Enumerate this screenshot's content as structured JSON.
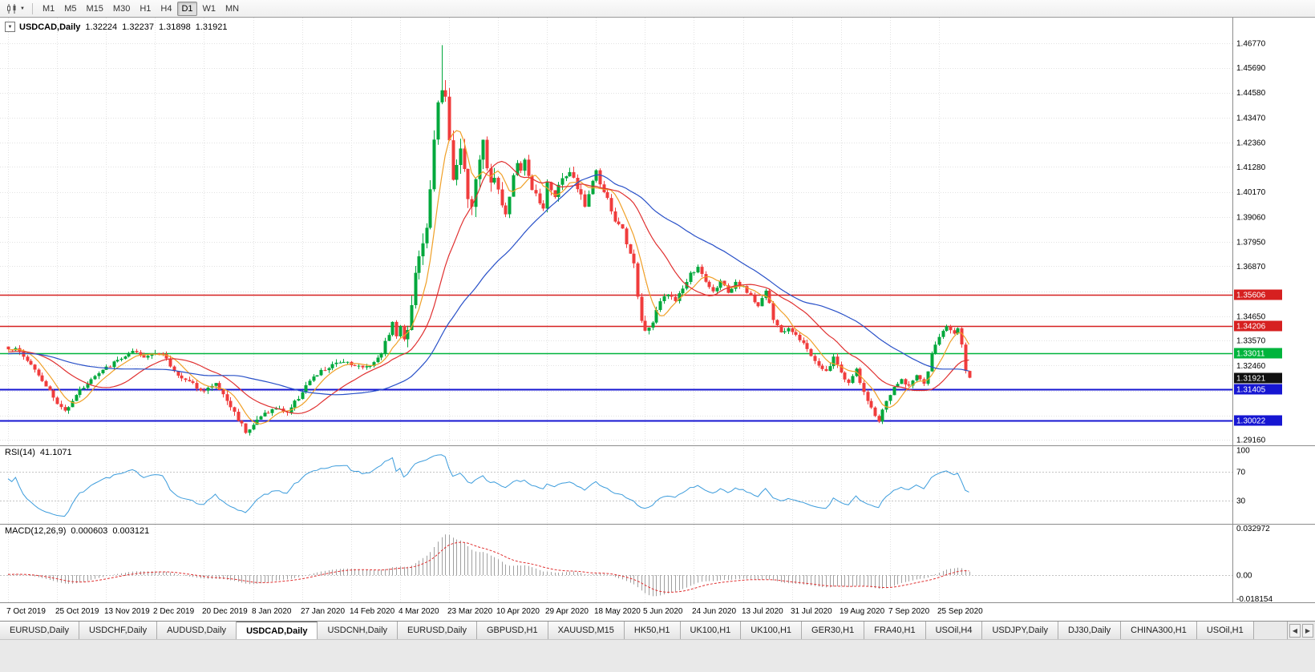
{
  "toolbar": {
    "timeframes": [
      "M1",
      "M5",
      "M15",
      "M30",
      "H1",
      "H4",
      "D1",
      "W1",
      "MN"
    ],
    "active_timeframe": "D1",
    "caret_glyph": "▼"
  },
  "chart": {
    "symbol_label": "USDCAD,Daily",
    "dropdown_glyph": "▼",
    "open": "1.32224",
    "high": "1.32237",
    "low": "1.31898",
    "close": "1.31921"
  },
  "price_axis": {
    "labels": [
      "1.46770",
      "1.45690",
      "1.44580",
      "1.43470",
      "1.42360",
      "1.41280",
      "1.40170",
      "1.39060",
      "1.37950",
      "1.36870",
      "1.34650",
      "1.33570",
      "1.32460",
      "1.29160"
    ],
    "grid_only": [
      "1.35760",
      "1.31350",
      "1.30240"
    ]
  },
  "hlines": [
    {
      "price": 1.35606,
      "label": "1.35606",
      "color": "#d62020",
      "width": 1.4,
      "type": "resistance"
    },
    {
      "price": 1.34206,
      "label": "1.34206",
      "color": "#d62020",
      "width": 1.4,
      "type": "resistance"
    },
    {
      "price": 1.33011,
      "label": "1.33011",
      "color": "#00b43c",
      "width": 1.4,
      "type": "pivot"
    },
    {
      "price": 1.31405,
      "label": "1.31405",
      "color": "#1616d2",
      "width": 2,
      "type": "support"
    },
    {
      "price": 1.30022,
      "label": "1.30022",
      "color": "#1616d2",
      "width": 2,
      "type": "support"
    }
  ],
  "current_price": {
    "value": 1.31921,
    "label": "1.31921"
  },
  "rsi_pane": {
    "title": "RSI(14)",
    "value": "41.1071",
    "levels": [
      "100",
      "70",
      "30"
    ],
    "upper_level": 70,
    "lower_level": 30
  },
  "macd_pane": {
    "title": "MACD(12,26,9)",
    "value_macd": "0.000603",
    "value_signal": "0.003121",
    "scale_max": "0.032972",
    "scale_zero": "0.00",
    "scale_min": "-0.018154"
  },
  "date_axis": [
    "7 Oct 2019",
    "25 Oct 2019",
    "13 Nov 2019",
    "2 Dec 2019",
    "20 Dec 2019",
    "8 Jan 2020",
    "27 Jan 2020",
    "14 Feb 2020",
    "4 Mar 2020",
    "23 Mar 2020",
    "10 Apr 2020",
    "29 Apr 2020",
    "18 May 2020",
    "5 Jun 2020",
    "24 Jun 2020",
    "13 Jul 2020",
    "31 Jul 2020",
    "19 Aug 2020",
    "7 Sep 2020",
    "25 Sep 2020"
  ],
  "tabs": {
    "items": [
      "EURUSD,Daily",
      "USDCHF,Daily",
      "AUDUSD,Daily",
      "USDCAD,Daily",
      "USDCNH,Daily",
      "EURUSD,Daily",
      "GBPUSD,H1",
      "XAUUSD,M15",
      "HK50,H1",
      "UK100,H1",
      "UK100,H1",
      "GER30,H1",
      "FRA40,H1",
      "USOil,H4",
      "USDJPY,Daily",
      "DJ30,Daily",
      "CHINA300,H1",
      "USOil,H1"
    ],
    "active_index": 3,
    "scroll_left_glyph": "◀",
    "scroll_right_glyph": "▶"
  },
  "colors": {
    "candle_up": "#00a83c",
    "candle_down": "#f03c3c",
    "rsi_line": "#3c9cdc",
    "macd_hist": "#a0a0a0",
    "macd_signal": "#e03030",
    "grid": "#e2e2e2",
    "current_badge": "#101010"
  },
  "chart_data": {
    "type": "candlestick",
    "symbol": "USDCAD",
    "timeframe": "Daily",
    "title": "USDCAD,Daily",
    "candle_count": 256,
    "last_candle_ohlc": {
      "open": 1.32224,
      "high": 1.32237,
      "low": 1.31898,
      "close": 1.31921
    },
    "forced_last_candle": {
      "open": 1.32224,
      "high": 1.32237,
      "low": 1.31898,
      "close": 1.31921
    },
    "forced_peak": {
      "index": 115,
      "high": 1.4669
    },
    "price_range_visible": [
      1.2906,
      1.477
    ],
    "close_path_anchors": [
      [
        0,
        1.3315
      ],
      [
        2,
        1.333
      ],
      [
        6,
        1.3255
      ],
      [
        10,
        1.316
      ],
      [
        13,
        1.3075
      ],
      [
        15,
        1.3045
      ],
      [
        18,
        1.312
      ],
      [
        22,
        1.3185
      ],
      [
        26,
        1.3235
      ],
      [
        30,
        1.328
      ],
      [
        33,
        1.3305
      ],
      [
        36,
        1.328
      ],
      [
        39,
        1.331
      ],
      [
        41,
        1.3295
      ],
      [
        44,
        1.322
      ],
      [
        48,
        1.317
      ],
      [
        52,
        1.3135
      ],
      [
        55,
        1.3165
      ],
      [
        58,
        1.309
      ],
      [
        61,
        1.301
      ],
      [
        63,
        1.2958
      ],
      [
        65,
        1.2985
      ],
      [
        68,
        1.3035
      ],
      [
        71,
        1.3055
      ],
      [
        74,
        1.304
      ],
      [
        77,
        1.3105
      ],
      [
        79,
        1.316
      ],
      [
        81,
        1.319
      ],
      [
        83,
        1.322
      ],
      [
        86,
        1.3245
      ],
      [
        89,
        1.327
      ],
      [
        91,
        1.3255
      ],
      [
        94,
        1.3235
      ],
      [
        97,
        1.326
      ],
      [
        99,
        1.331
      ],
      [
        101,
        1.339
      ],
      [
        102,
        1.3435
      ],
      [
        103,
        1.338
      ],
      [
        104,
        1.3415
      ],
      [
        105,
        1.337
      ],
      [
        106,
        1.342
      ],
      [
        107,
        1.353
      ],
      [
        108,
        1.365
      ],
      [
        109,
        1.374
      ],
      [
        110,
        1.377
      ],
      [
        111,
        1.387
      ],
      [
        112,
        1.401
      ],
      [
        113,
        1.423
      ],
      [
        114,
        1.443
      ],
      [
        115,
        1.449
      ],
      [
        116,
        1.4425
      ],
      [
        117,
        1.423
      ],
      [
        118,
        1.406
      ],
      [
        119,
        1.413
      ],
      [
        120,
        1.421
      ],
      [
        121,
        1.411
      ],
      [
        122,
        1.401
      ],
      [
        123,
        1.393
      ],
      [
        124,
        1.405
      ],
      [
        125,
        1.418
      ],
      [
        126,
        1.426
      ],
      [
        127,
        1.415
      ],
      [
        128,
        1.406
      ],
      [
        129,
        1.4105
      ],
      [
        130,
        1.402
      ],
      [
        131,
        1.396
      ],
      [
        132,
        1.389
      ],
      [
        133,
        1.4
      ],
      [
        134,
        1.409
      ],
      [
        135,
        1.416
      ],
      [
        136,
        1.41
      ],
      [
        137,
        1.417
      ],
      [
        138,
        1.409
      ],
      [
        139,
        1.403
      ],
      [
        141,
        1.398
      ],
      [
        142,
        1.395
      ],
      [
        143,
        1.407
      ],
      [
        145,
        1.399
      ],
      [
        147,
        1.408
      ],
      [
        149,
        1.411
      ],
      [
        151,
        1.403
      ],
      [
        153,
        1.396
      ],
      [
        155,
        1.406
      ],
      [
        156,
        1.412
      ],
      [
        157,
        1.405
      ],
      [
        159,
        1.398
      ],
      [
        161,
        1.389
      ],
      [
        163,
        1.384
      ],
      [
        164,
        1.378
      ],
      [
        166,
        1.369
      ],
      [
        167,
        1.356
      ],
      [
        168,
        1.345
      ],
      [
        169,
        1.339
      ],
      [
        171,
        1.344
      ],
      [
        173,
        1.353
      ],
      [
        175,
        1.357
      ],
      [
        177,
        1.353
      ],
      [
        179,
        1.359
      ],
      [
        181,
        1.365
      ],
      [
        183,
        1.368
      ],
      [
        185,
        1.362
      ],
      [
        187,
        1.357
      ],
      [
        189,
        1.363
      ],
      [
        191,
        1.356
      ],
      [
        193,
        1.361
      ],
      [
        195,
        1.359
      ],
      [
        197,
        1.356
      ],
      [
        199,
        1.351
      ],
      [
        201,
        1.358
      ],
      [
        203,
        1.345
      ],
      [
        205,
        1.339
      ],
      [
        207,
        1.3415
      ],
      [
        209,
        1.339
      ],
      [
        211,
        1.3345
      ],
      [
        213,
        1.329
      ],
      [
        215,
        1.325
      ],
      [
        217,
        1.322
      ],
      [
        219,
        1.328
      ],
      [
        221,
        1.3215
      ],
      [
        223,
        1.317
      ],
      [
        225,
        1.3225
      ],
      [
        227,
        1.312
      ],
      [
        229,
        1.306
      ],
      [
        231,
        1.2998
      ],
      [
        233,
        1.309
      ],
      [
        235,
        1.315
      ],
      [
        237,
        1.318
      ],
      [
        239,
        1.3155
      ],
      [
        241,
        1.321
      ],
      [
        243,
        1.316
      ],
      [
        245,
        1.329
      ],
      [
        247,
        1.338
      ],
      [
        249,
        1.3415
      ],
      [
        251,
        1.3395
      ],
      [
        252,
        1.342
      ],
      [
        253,
        1.334
      ],
      [
        254,
        1.3222
      ],
      [
        255,
        1.31921
      ]
    ],
    "moving_averages": [
      {
        "period": 7,
        "color": "#f0a028"
      },
      {
        "period": 20,
        "color": "#e03030"
      },
      {
        "period": 45,
        "color": "#2850c8"
      }
    ],
    "indicators": [
      {
        "name": "RSI",
        "period": 14,
        "last_value": 41.1071
      },
      {
        "name": "MACD",
        "fast": 12,
        "slow": 26,
        "signal": 9,
        "last_values": [
          0.000603,
          0.003121
        ]
      }
    ],
    "levels": [
      1.35606,
      1.34206,
      1.33011,
      1.31405,
      1.30022
    ]
  }
}
